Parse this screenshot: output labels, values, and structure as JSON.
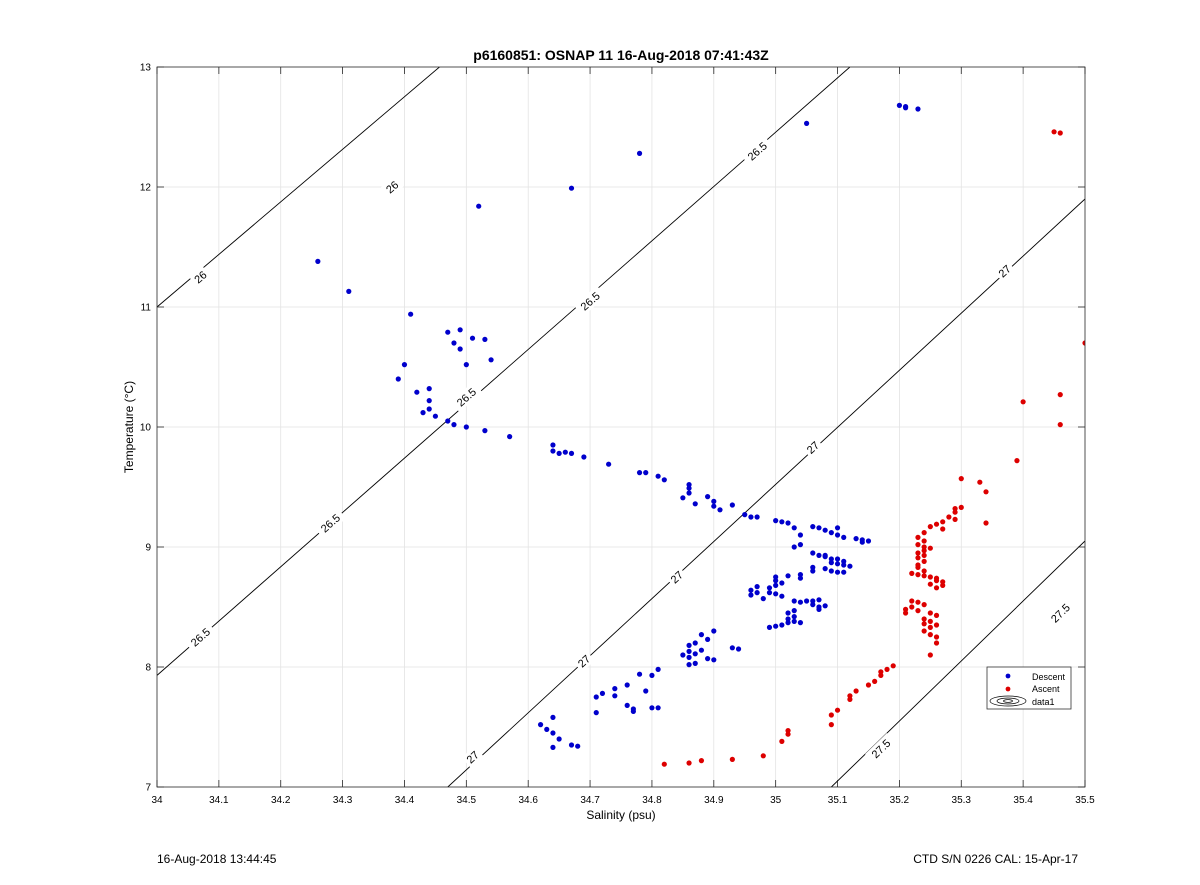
{
  "footer": {
    "timestamp": "16-Aug-2018 13:44:45",
    "instrument": "CTD S/N 0226  CAL: 15-Apr-17"
  },
  "colors": {
    "descent": "#0000cc",
    "ascent": "#dd0000",
    "grid": "#e3e3e3",
    "contour": "#000000"
  },
  "chart_data": {
    "type": "scatter",
    "title": "p6160851: OSNAP 11 16-Aug-2018 07:41:43Z",
    "xlabel": "Salinity (psu)",
    "ylabel": "Temperature (°C)",
    "xlim": [
      34,
      35.5
    ],
    "ylim": [
      7,
      13
    ],
    "xticks": [
      34,
      34.1,
      34.2,
      34.3,
      34.4,
      34.5,
      34.6,
      34.7,
      34.8,
      34.9,
      35,
      35.1,
      35.2,
      35.3,
      35.4,
      35.5
    ],
    "xtick_labels": [
      "34",
      "34.1",
      "34.2",
      "34.3",
      "34.4",
      "34.5",
      "34.6",
      "34.7",
      "34.8",
      "34.9",
      "35",
      "35.1",
      "35.2",
      "35.3",
      "35.4",
      "35.5"
    ],
    "yticks": [
      7,
      8,
      9,
      10,
      11,
      12,
      13
    ],
    "ytick_labels": [
      "7",
      "8",
      "9",
      "10",
      "11",
      "12",
      "13"
    ],
    "grid": true,
    "legend": {
      "placement": "bottom-right",
      "entries": [
        "Descent",
        "Ascent",
        "data1"
      ]
    },
    "density_contours": [
      {
        "level": "26",
        "line": [
          [
            34.0,
            11.0
          ],
          [
            34.5,
            13.19
          ]
        ],
        "labels": [
          {
            "text": "26",
            "s": 34.38,
            "t": 12.0
          },
          {
            "text": "26",
            "s": 34.07,
            "t": 11.25
          }
        ]
      },
      {
        "level": "26.5",
        "line": [
          [
            34.0,
            7.93
          ],
          [
            35.12,
            13.0
          ]
        ],
        "labels": [
          {
            "text": "26.5",
            "s": 34.97,
            "t": 12.3
          },
          {
            "text": "26.5",
            "s": 34.7,
            "t": 11.05
          },
          {
            "text": "26.5",
            "s": 34.5,
            "t": 10.25
          },
          {
            "text": "26.5",
            "s": 34.28,
            "t": 9.2
          },
          {
            "text": "26.5",
            "s": 34.07,
            "t": 8.25
          }
        ]
      },
      {
        "level": "27",
        "line": [
          [
            34.47,
            7.0
          ],
          [
            35.5,
            11.9
          ]
        ],
        "labels": [
          {
            "text": "27",
            "s": 35.37,
            "t": 11.3
          },
          {
            "text": "27",
            "s": 35.06,
            "t": 9.83
          },
          {
            "text": "27",
            "s": 34.84,
            "t": 8.75
          },
          {
            "text": "27",
            "s": 34.69,
            "t": 8.05
          },
          {
            "text": "27",
            "s": 34.51,
            "t": 7.25
          }
        ]
      },
      {
        "level": "27.5",
        "line": [
          [
            35.09,
            7.0
          ],
          [
            35.5,
            9.05
          ]
        ],
        "labels": [
          {
            "text": "27.5",
            "s": 35.46,
            "t": 8.45
          },
          {
            "text": "27.5",
            "s": 35.17,
            "t": 7.32
          }
        ]
      }
    ],
    "series": [
      {
        "name": "Descent",
        "points": [
          [
            35.2,
            12.68
          ],
          [
            35.21,
            12.66
          ],
          [
            35.23,
            12.65
          ],
          [
            35.21,
            12.67
          ],
          [
            35.05,
            12.53
          ],
          [
            34.78,
            12.28
          ],
          [
            34.67,
            11.99
          ],
          [
            34.52,
            11.84
          ],
          [
            34.26,
            11.38
          ],
          [
            34.31,
            11.13
          ],
          [
            34.41,
            10.94
          ],
          [
            34.49,
            10.81
          ],
          [
            34.47,
            10.79
          ],
          [
            34.51,
            10.74
          ],
          [
            34.53,
            10.73
          ],
          [
            34.48,
            10.7
          ],
          [
            34.49,
            10.65
          ],
          [
            34.54,
            10.56
          ],
          [
            34.4,
            10.52
          ],
          [
            34.5,
            10.52
          ],
          [
            34.39,
            10.4
          ],
          [
            34.42,
            10.29
          ],
          [
            34.44,
            10.32
          ],
          [
            34.44,
            10.22
          ],
          [
            34.44,
            10.15
          ],
          [
            34.43,
            10.12
          ],
          [
            34.45,
            10.09
          ],
          [
            34.47,
            10.05
          ],
          [
            34.48,
            10.02
          ],
          [
            34.5,
            10.0
          ],
          [
            34.53,
            9.97
          ],
          [
            34.57,
            9.92
          ],
          [
            34.64,
            9.85
          ],
          [
            34.64,
            9.8
          ],
          [
            34.65,
            9.78
          ],
          [
            34.66,
            9.79
          ],
          [
            34.67,
            9.78
          ],
          [
            34.69,
            9.75
          ],
          [
            34.73,
            9.69
          ],
          [
            34.78,
            9.62
          ],
          [
            34.79,
            9.62
          ],
          [
            34.81,
            9.59
          ],
          [
            34.82,
            9.56
          ],
          [
            34.86,
            9.52
          ],
          [
            34.86,
            9.49
          ],
          [
            34.86,
            9.45
          ],
          [
            34.85,
            9.41
          ],
          [
            34.87,
            9.36
          ],
          [
            34.89,
            9.42
          ],
          [
            34.9,
            9.38
          ],
          [
            34.9,
            9.34
          ],
          [
            34.91,
            9.31
          ],
          [
            34.93,
            9.35
          ],
          [
            34.95,
            9.27
          ],
          [
            34.96,
            9.25
          ],
          [
            34.97,
            9.25
          ],
          [
            35.0,
            9.22
          ],
          [
            35.01,
            9.21
          ],
          [
            35.02,
            9.2
          ],
          [
            35.03,
            9.16
          ],
          [
            35.04,
            9.1
          ],
          [
            35.06,
            9.17
          ],
          [
            35.07,
            9.16
          ],
          [
            35.08,
            9.14
          ],
          [
            35.09,
            9.12
          ],
          [
            35.1,
            9.1
          ],
          [
            35.1,
            9.16
          ],
          [
            35.11,
            9.08
          ],
          [
            35.13,
            9.07
          ],
          [
            35.14,
            9.06
          ],
          [
            35.15,
            9.05
          ],
          [
            35.14,
            9.04
          ],
          [
            35.04,
            9.02
          ],
          [
            35.03,
            9.0
          ],
          [
            35.06,
            8.95
          ],
          [
            35.07,
            8.93
          ],
          [
            35.08,
            8.93
          ],
          [
            35.08,
            8.92
          ],
          [
            35.09,
            8.9
          ],
          [
            35.1,
            8.9
          ],
          [
            35.11,
            8.88
          ],
          [
            35.09,
            8.87
          ],
          [
            35.1,
            8.86
          ],
          [
            35.11,
            8.85
          ],
          [
            35.12,
            8.84
          ],
          [
            35.06,
            8.83
          ],
          [
            35.06,
            8.8
          ],
          [
            35.08,
            8.82
          ],
          [
            35.09,
            8.8
          ],
          [
            35.1,
            8.79
          ],
          [
            35.11,
            8.79
          ],
          [
            35.02,
            8.76
          ],
          [
            35.04,
            8.77
          ],
          [
            35.04,
            8.74
          ],
          [
            35.0,
            8.75
          ],
          [
            35.0,
            8.72
          ],
          [
            35.01,
            8.7
          ],
          [
            35.0,
            8.68
          ],
          [
            34.99,
            8.66
          ],
          [
            34.97,
            8.67
          ],
          [
            34.96,
            8.64
          ],
          [
            34.96,
            8.6
          ],
          [
            34.97,
            8.62
          ],
          [
            34.99,
            8.62
          ],
          [
            35.0,
            8.61
          ],
          [
            35.01,
            8.59
          ],
          [
            34.98,
            8.57
          ],
          [
            35.03,
            8.55
          ],
          [
            35.04,
            8.54
          ],
          [
            35.05,
            8.55
          ],
          [
            35.06,
            8.55
          ],
          [
            35.07,
            8.56
          ],
          [
            35.06,
            8.52
          ],
          [
            35.07,
            8.5
          ],
          [
            35.07,
            8.48
          ],
          [
            35.08,
            8.51
          ],
          [
            35.03,
            8.47
          ],
          [
            35.02,
            8.45
          ],
          [
            35.03,
            8.42
          ],
          [
            35.02,
            8.4
          ],
          [
            35.03,
            8.38
          ],
          [
            35.04,
            8.37
          ],
          [
            35.02,
            8.37
          ],
          [
            35.01,
            8.35
          ],
          [
            35.0,
            8.34
          ],
          [
            34.99,
            8.33
          ],
          [
            34.9,
            8.3
          ],
          [
            34.88,
            8.27
          ],
          [
            34.89,
            8.23
          ],
          [
            34.87,
            8.2
          ],
          [
            34.86,
            8.18
          ],
          [
            34.88,
            8.14
          ],
          [
            34.86,
            8.13
          ],
          [
            34.85,
            8.1
          ],
          [
            34.86,
            8.08
          ],
          [
            34.87,
            8.11
          ],
          [
            34.89,
            8.07
          ],
          [
            34.9,
            8.06
          ],
          [
            34.87,
            8.03
          ],
          [
            34.86,
            8.02
          ],
          [
            34.93,
            8.16
          ],
          [
            34.94,
            8.15
          ],
          [
            34.81,
            7.98
          ],
          [
            34.8,
            7.93
          ],
          [
            34.78,
            7.94
          ],
          [
            34.76,
            7.85
          ],
          [
            34.74,
            7.82
          ],
          [
            34.72,
            7.78
          ],
          [
            34.71,
            7.75
          ],
          [
            34.74,
            7.76
          ],
          [
            34.79,
            7.8
          ],
          [
            34.76,
            7.68
          ],
          [
            34.77,
            7.65
          ],
          [
            34.77,
            7.63
          ],
          [
            34.8,
            7.66
          ],
          [
            34.81,
            7.66
          ],
          [
            34.71,
            7.62
          ],
          [
            34.64,
            7.58
          ],
          [
            34.62,
            7.52
          ],
          [
            34.63,
            7.48
          ],
          [
            34.64,
            7.45
          ],
          [
            34.65,
            7.4
          ],
          [
            34.64,
            7.33
          ],
          [
            34.67,
            7.35
          ],
          [
            34.68,
            7.34
          ]
        ]
      },
      {
        "name": "Ascent",
        "points": [
          [
            35.45,
            12.46
          ],
          [
            35.46,
            12.45
          ],
          [
            35.5,
            10.7
          ],
          [
            35.46,
            10.27
          ],
          [
            35.4,
            10.21
          ],
          [
            35.46,
            10.02
          ],
          [
            35.39,
            9.72
          ],
          [
            35.3,
            9.57
          ],
          [
            35.33,
            9.54
          ],
          [
            35.34,
            9.46
          ],
          [
            35.29,
            9.32
          ],
          [
            35.3,
            9.33
          ],
          [
            35.29,
            9.29
          ],
          [
            35.28,
            9.25
          ],
          [
            35.29,
            9.23
          ],
          [
            35.27,
            9.21
          ],
          [
            35.34,
            9.2
          ],
          [
            35.26,
            9.19
          ],
          [
            35.25,
            9.17
          ],
          [
            35.27,
            9.15
          ],
          [
            35.24,
            9.12
          ],
          [
            35.23,
            9.08
          ],
          [
            35.24,
            9.05
          ],
          [
            35.23,
            9.02
          ],
          [
            35.24,
            9.0
          ],
          [
            35.25,
            8.99
          ],
          [
            35.24,
            8.97
          ],
          [
            35.23,
            8.95
          ],
          [
            35.24,
            8.93
          ],
          [
            35.23,
            8.91
          ],
          [
            35.24,
            8.88
          ],
          [
            35.23,
            8.85
          ],
          [
            35.23,
            8.83
          ],
          [
            35.24,
            8.8
          ],
          [
            35.22,
            8.78
          ],
          [
            35.23,
            8.77
          ],
          [
            35.24,
            8.76
          ],
          [
            35.25,
            8.75
          ],
          [
            35.26,
            8.74
          ],
          [
            35.26,
            8.72
          ],
          [
            35.27,
            8.71
          ],
          [
            35.25,
            8.69
          ],
          [
            35.27,
            8.68
          ],
          [
            35.26,
            8.66
          ],
          [
            35.22,
            8.55
          ],
          [
            35.23,
            8.54
          ],
          [
            35.24,
            8.52
          ],
          [
            35.22,
            8.5
          ],
          [
            35.21,
            8.48
          ],
          [
            35.23,
            8.47
          ],
          [
            35.21,
            8.45
          ],
          [
            35.25,
            8.45
          ],
          [
            35.26,
            8.43
          ],
          [
            35.24,
            8.4
          ],
          [
            35.25,
            8.38
          ],
          [
            35.24,
            8.36
          ],
          [
            35.26,
            8.35
          ],
          [
            35.25,
            8.33
          ],
          [
            35.24,
            8.3
          ],
          [
            35.25,
            8.27
          ],
          [
            35.26,
            8.25
          ],
          [
            35.26,
            8.2
          ],
          [
            35.25,
            8.1
          ],
          [
            35.19,
            8.01
          ],
          [
            35.18,
            7.98
          ],
          [
            35.17,
            7.96
          ],
          [
            35.17,
            7.93
          ],
          [
            35.16,
            7.88
          ],
          [
            35.15,
            7.85
          ],
          [
            35.13,
            7.8
          ],
          [
            35.12,
            7.76
          ],
          [
            35.12,
            7.73
          ],
          [
            35.1,
            7.64
          ],
          [
            35.09,
            7.6
          ],
          [
            35.09,
            7.52
          ],
          [
            35.02,
            7.47
          ],
          [
            35.02,
            7.44
          ],
          [
            35.01,
            7.38
          ],
          [
            34.98,
            7.26
          ],
          [
            34.93,
            7.23
          ],
          [
            34.88,
            7.22
          ],
          [
            34.86,
            7.2
          ],
          [
            34.82,
            7.19
          ]
        ]
      }
    ]
  }
}
